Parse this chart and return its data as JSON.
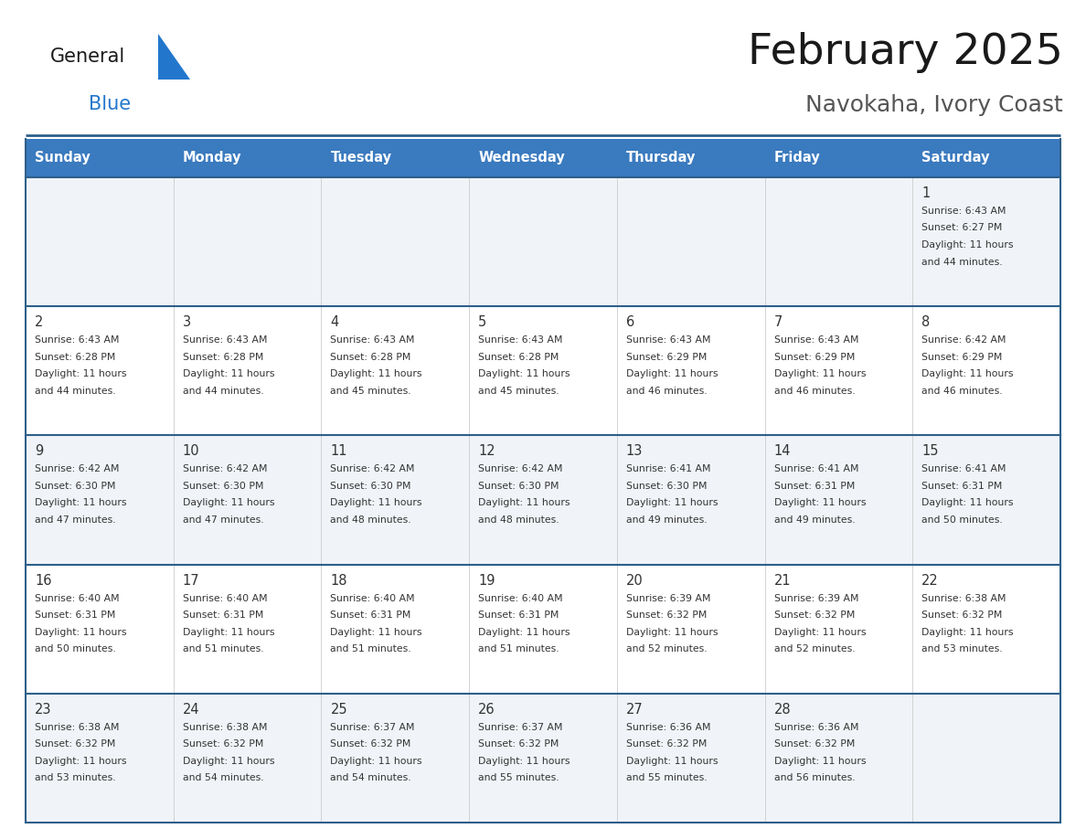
{
  "title": "February 2025",
  "subtitle": "Navokaha, Ivory Coast",
  "days_of_week": [
    "Sunday",
    "Monday",
    "Tuesday",
    "Wednesday",
    "Thursday",
    "Friday",
    "Saturday"
  ],
  "header_bg": "#3a7abf",
  "header_text": "#ffffff",
  "cell_bg": "#ffffff",
  "row1_bg": "#f0f4f8",
  "border_color": "#2e5f8a",
  "sep_color": "#2e5f8a",
  "text_color": "#333333",
  "day_num_color": "#333333",
  "title_color": "#1a1a1a",
  "subtitle_color": "#555555",
  "logo_color1": "#1a1a1a",
  "logo_color2": "#2277cc",
  "logo_tri_color": "#2277cc",
  "calendar_data": [
    [
      null,
      null,
      null,
      null,
      null,
      null,
      {
        "day": 1,
        "sunrise": "6:43 AM",
        "sunset": "6:27 PM",
        "daylight": "11 hours\nand 44 minutes."
      }
    ],
    [
      {
        "day": 2,
        "sunrise": "6:43 AM",
        "sunset": "6:28 PM",
        "daylight": "11 hours\nand 44 minutes."
      },
      {
        "day": 3,
        "sunrise": "6:43 AM",
        "sunset": "6:28 PM",
        "daylight": "11 hours\nand 44 minutes."
      },
      {
        "day": 4,
        "sunrise": "6:43 AM",
        "sunset": "6:28 PM",
        "daylight": "11 hours\nand 45 minutes."
      },
      {
        "day": 5,
        "sunrise": "6:43 AM",
        "sunset": "6:28 PM",
        "daylight": "11 hours\nand 45 minutes."
      },
      {
        "day": 6,
        "sunrise": "6:43 AM",
        "sunset": "6:29 PM",
        "daylight": "11 hours\nand 46 minutes."
      },
      {
        "day": 7,
        "sunrise": "6:43 AM",
        "sunset": "6:29 PM",
        "daylight": "11 hours\nand 46 minutes."
      },
      {
        "day": 8,
        "sunrise": "6:42 AM",
        "sunset": "6:29 PM",
        "daylight": "11 hours\nand 46 minutes."
      }
    ],
    [
      {
        "day": 9,
        "sunrise": "6:42 AM",
        "sunset": "6:30 PM",
        "daylight": "11 hours\nand 47 minutes."
      },
      {
        "day": 10,
        "sunrise": "6:42 AM",
        "sunset": "6:30 PM",
        "daylight": "11 hours\nand 47 minutes."
      },
      {
        "day": 11,
        "sunrise": "6:42 AM",
        "sunset": "6:30 PM",
        "daylight": "11 hours\nand 48 minutes."
      },
      {
        "day": 12,
        "sunrise": "6:42 AM",
        "sunset": "6:30 PM",
        "daylight": "11 hours\nand 48 minutes."
      },
      {
        "day": 13,
        "sunrise": "6:41 AM",
        "sunset": "6:30 PM",
        "daylight": "11 hours\nand 49 minutes."
      },
      {
        "day": 14,
        "sunrise": "6:41 AM",
        "sunset": "6:31 PM",
        "daylight": "11 hours\nand 49 minutes."
      },
      {
        "day": 15,
        "sunrise": "6:41 AM",
        "sunset": "6:31 PM",
        "daylight": "11 hours\nand 50 minutes."
      }
    ],
    [
      {
        "day": 16,
        "sunrise": "6:40 AM",
        "sunset": "6:31 PM",
        "daylight": "11 hours\nand 50 minutes."
      },
      {
        "day": 17,
        "sunrise": "6:40 AM",
        "sunset": "6:31 PM",
        "daylight": "11 hours\nand 51 minutes."
      },
      {
        "day": 18,
        "sunrise": "6:40 AM",
        "sunset": "6:31 PM",
        "daylight": "11 hours\nand 51 minutes."
      },
      {
        "day": 19,
        "sunrise": "6:40 AM",
        "sunset": "6:31 PM",
        "daylight": "11 hours\nand 51 minutes."
      },
      {
        "day": 20,
        "sunrise": "6:39 AM",
        "sunset": "6:32 PM",
        "daylight": "11 hours\nand 52 minutes."
      },
      {
        "day": 21,
        "sunrise": "6:39 AM",
        "sunset": "6:32 PM",
        "daylight": "11 hours\nand 52 minutes."
      },
      {
        "day": 22,
        "sunrise": "6:38 AM",
        "sunset": "6:32 PM",
        "daylight": "11 hours\nand 53 minutes."
      }
    ],
    [
      {
        "day": 23,
        "sunrise": "6:38 AM",
        "sunset": "6:32 PM",
        "daylight": "11 hours\nand 53 minutes."
      },
      {
        "day": 24,
        "sunrise": "6:38 AM",
        "sunset": "6:32 PM",
        "daylight": "11 hours\nand 54 minutes."
      },
      {
        "day": 25,
        "sunrise": "6:37 AM",
        "sunset": "6:32 PM",
        "daylight": "11 hours\nand 54 minutes."
      },
      {
        "day": 26,
        "sunrise": "6:37 AM",
        "sunset": "6:32 PM",
        "daylight": "11 hours\nand 55 minutes."
      },
      {
        "day": 27,
        "sunrise": "6:36 AM",
        "sunset": "6:32 PM",
        "daylight": "11 hours\nand 55 minutes."
      },
      {
        "day": 28,
        "sunrise": "6:36 AM",
        "sunset": "6:32 PM",
        "daylight": "11 hours\nand 56 minutes."
      },
      null
    ]
  ]
}
